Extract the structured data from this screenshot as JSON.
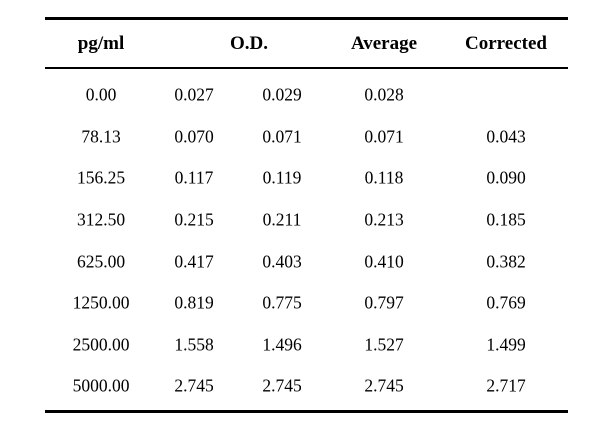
{
  "table": {
    "headers": {
      "concentration": "pg/ml",
      "od": "O.D.",
      "average": "Average",
      "corrected": "Corrected"
    },
    "rows": [
      [
        "0.00",
        "0.027",
        "0.029",
        "0.028",
        ""
      ],
      [
        "78.13",
        "0.070",
        "0.071",
        "0.071",
        "0.043"
      ],
      [
        "156.25",
        "0.117",
        "0.119",
        "0.118",
        "0.090"
      ],
      [
        "312.50",
        "0.215",
        "0.211",
        "0.213",
        "0.185"
      ],
      [
        "625.00",
        "0.417",
        "0.403",
        "0.410",
        "0.382"
      ],
      [
        "1250.00",
        "0.819",
        "0.775",
        "0.797",
        "0.769"
      ],
      [
        "2500.00",
        "1.558",
        "1.496",
        "1.527",
        "1.499"
      ],
      [
        "5000.00",
        "2.745",
        "2.745",
        "2.745",
        "2.717"
      ]
    ]
  }
}
